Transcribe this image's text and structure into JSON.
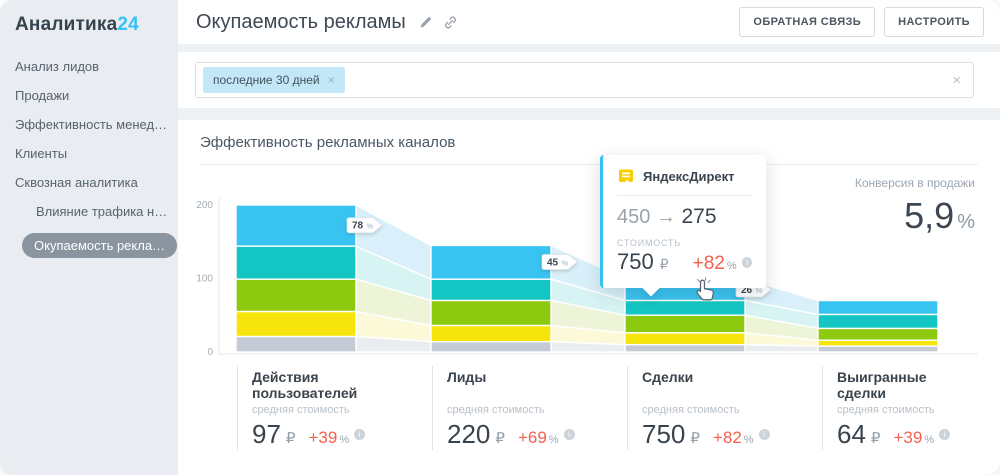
{
  "app": {
    "brand_prefix": "Аналитика",
    "brand_suffix": "24"
  },
  "sidebar": {
    "items": [
      {
        "label": "Анализ лидов",
        "level": 0,
        "active": false
      },
      {
        "label": "Продажи",
        "level": 0,
        "active": false
      },
      {
        "label": "Эффективность менед…",
        "level": 0,
        "active": false
      },
      {
        "label": "Клиенты",
        "level": 0,
        "active": false
      },
      {
        "label": "Сквозная аналитика",
        "level": 0,
        "active": false
      },
      {
        "label": "Влияние трафика н…",
        "level": 1,
        "active": false
      },
      {
        "label": "Окупаемость рекла…",
        "level": 1,
        "active": true
      }
    ]
  },
  "header": {
    "title": "Окупаемость рекламы",
    "buttons": {
      "feedback": "ОБРАТНАЯ СВЯЗЬ",
      "configure": "НАСТРОИТЬ"
    }
  },
  "filter": {
    "tag": "последние 30 дней",
    "tag_close": "×",
    "clear": "×"
  },
  "tooltip": {
    "title": "ЯндексДирект",
    "from": "450",
    "arrow": "→",
    "to": "275",
    "cost_label": "стоимость",
    "cost_value": "750",
    "currency": "₽",
    "change": "+82",
    "percent": "%"
  },
  "conversion_summary": {
    "label": "Конверсия в продажи",
    "value": "5,9",
    "unit": "%"
  },
  "chart_data": {
    "type": "funnel-stacked-bar",
    "title": "Эффективность рекламных каналов",
    "ylim": [
      0,
      200
    ],
    "y_ticks": [
      0,
      100,
      200
    ],
    "grid": false,
    "legend": false,
    "segment_colors": [
      "#38c3f0",
      "#14c6c3",
      "#8dc90e",
      "#f5e50d",
      "#c4cbd4"
    ],
    "flow_colors": [
      "#d9f0fa",
      "#d7f3f3",
      "#edf4d8",
      "#fcf9d9",
      "#eaedf0"
    ],
    "accent_color": "#36c3f0",
    "negative_positive_change_color": "#f4604d",
    "avg_cost_caption": "средняя стоимость",
    "currency": "₽",
    "percent_sign": "%",
    "stages": [
      {
        "label": "Действия пользователей",
        "total": 200,
        "segments": [
          56,
          45,
          44,
          34,
          21
        ],
        "avg_cost": "97",
        "change": "+39"
      },
      {
        "label": "Лиды",
        "total": 145,
        "segments": [
          46,
          29,
          34,
          22,
          14
        ],
        "avg_cost": "220",
        "change": "+69"
      },
      {
        "label": "Сделки",
        "total": 100,
        "segments": [
          30,
          20,
          24,
          16,
          10
        ],
        "avg_cost": "750",
        "change": "+82"
      },
      {
        "label": "Выигранные сделки",
        "total": 70,
        "segments": [
          19,
          19,
          16,
          8,
          8
        ],
        "avg_cost": "64",
        "change": "+39"
      }
    ],
    "conversions_between_stages": [
      78,
      45,
      26
    ]
  }
}
